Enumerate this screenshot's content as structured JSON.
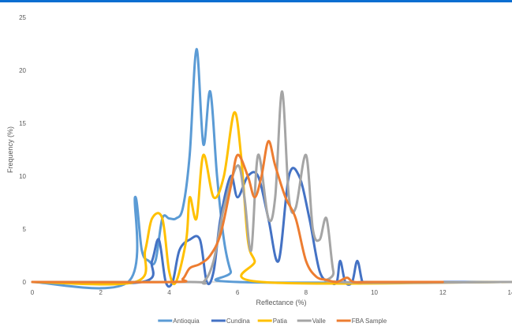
{
  "colors": {
    "top_bar": "#0a6ed1",
    "axis": "#bfbfbf"
  },
  "chart_data": {
    "type": "line",
    "title": "",
    "xlabel": "Reflectance (%)",
    "ylabel": "Frequency (%)",
    "xlim": [
      0,
      14
    ],
    "ylim": [
      0,
      25
    ],
    "x_ticks": [
      0,
      2,
      4,
      6,
      8,
      10,
      12,
      14
    ],
    "y_ticks": [
      0,
      5,
      10,
      15,
      20,
      25
    ],
    "grid": false,
    "legend_position": "bottom",
    "series": [
      {
        "name": "Antioquia",
        "color": "#5b9bd5",
        "points": [
          [
            0,
            0
          ],
          [
            2.8,
            0
          ],
          [
            3.0,
            8
          ],
          [
            3.2,
            3
          ],
          [
            3.4,
            2
          ],
          [
            3.6,
            2
          ],
          [
            3.8,
            6
          ],
          [
            4.0,
            6
          ],
          [
            4.2,
            6
          ],
          [
            4.4,
            7
          ],
          [
            4.6,
            12
          ],
          [
            4.8,
            22
          ],
          [
            5.0,
            13
          ],
          [
            5.2,
            18
          ],
          [
            5.4,
            10
          ],
          [
            5.6,
            4
          ],
          [
            5.8,
            1
          ],
          [
            6.0,
            0
          ],
          [
            14,
            0
          ]
        ]
      },
      {
        "name": "Cundina",
        "color": "#4472c4",
        "points": [
          [
            0,
            0
          ],
          [
            3.2,
            0
          ],
          [
            3.5,
            2
          ],
          [
            3.7,
            4
          ],
          [
            3.9,
            0
          ],
          [
            4.1,
            0
          ],
          [
            4.3,
            3
          ],
          [
            4.6,
            4
          ],
          [
            4.9,
            4
          ],
          [
            5.1,
            0
          ],
          [
            5.3,
            1
          ],
          [
            5.5,
            6
          ],
          [
            5.8,
            10
          ],
          [
            6.0,
            8
          ],
          [
            6.3,
            10
          ],
          [
            6.6,
            10
          ],
          [
            6.9,
            6
          ],
          [
            7.2,
            2
          ],
          [
            7.5,
            10
          ],
          [
            7.8,
            10
          ],
          [
            8.1,
            6
          ],
          [
            8.4,
            1
          ],
          [
            8.7,
            0
          ],
          [
            8.9,
            0
          ],
          [
            9.0,
            2
          ],
          [
            9.15,
            0
          ],
          [
            9.35,
            0
          ],
          [
            9.5,
            2
          ],
          [
            9.65,
            0
          ],
          [
            9.8,
            0
          ],
          [
            14,
            0
          ]
        ]
      },
      {
        "name": "Patia",
        "color": "#ffc000",
        "points": [
          [
            0,
            0
          ],
          [
            3.0,
            0
          ],
          [
            3.3,
            3
          ],
          [
            3.5,
            6
          ],
          [
            3.8,
            6
          ],
          [
            4.0,
            1
          ],
          [
            4.2,
            0
          ],
          [
            4.5,
            4
          ],
          [
            4.6,
            8
          ],
          [
            4.8,
            6
          ],
          [
            5.0,
            12
          ],
          [
            5.3,
            8
          ],
          [
            5.6,
            10
          ],
          [
            5.9,
            16
          ],
          [
            6.1,
            12
          ],
          [
            6.3,
            4
          ],
          [
            6.5,
            2
          ],
          [
            6.7,
            0
          ],
          [
            14,
            0
          ]
        ]
      },
      {
        "name": "Valle",
        "color": "#a5a5a5",
        "points": [
          [
            0,
            0
          ],
          [
            4.6,
            0
          ],
          [
            5.0,
            0
          ],
          [
            5.3,
            2
          ],
          [
            5.6,
            7
          ],
          [
            6.0,
            11
          ],
          [
            6.2,
            8
          ],
          [
            6.4,
            3
          ],
          [
            6.6,
            12
          ],
          [
            6.9,
            6
          ],
          [
            7.1,
            8
          ],
          [
            7.3,
            18
          ],
          [
            7.5,
            8
          ],
          [
            7.7,
            7
          ],
          [
            8.0,
            12
          ],
          [
            8.2,
            5
          ],
          [
            8.4,
            4
          ],
          [
            8.6,
            6
          ],
          [
            8.8,
            1
          ],
          [
            9.0,
            0
          ],
          [
            14,
            0
          ]
        ]
      },
      {
        "name": "FBA Sample",
        "color": "#ed7d31",
        "points": [
          [
            0,
            0
          ],
          [
            4.1,
            0
          ],
          [
            4.4,
            0.3
          ],
          [
            4.6,
            1.3
          ],
          [
            4.9,
            1.7
          ],
          [
            5.2,
            2.5
          ],
          [
            5.5,
            4.5
          ],
          [
            5.8,
            9
          ],
          [
            6.0,
            12
          ],
          [
            6.3,
            10
          ],
          [
            6.5,
            8
          ],
          [
            6.7,
            10
          ],
          [
            6.9,
            13.3
          ],
          [
            7.1,
            11
          ],
          [
            7.4,
            8
          ],
          [
            7.7,
            6
          ],
          [
            8.0,
            2
          ],
          [
            8.3,
            0.5
          ],
          [
            8.6,
            0.2
          ],
          [
            8.9,
            0
          ],
          [
            9.2,
            0.4
          ],
          [
            9.4,
            0
          ],
          [
            10,
            0
          ],
          [
            12,
            0
          ]
        ]
      }
    ]
  }
}
